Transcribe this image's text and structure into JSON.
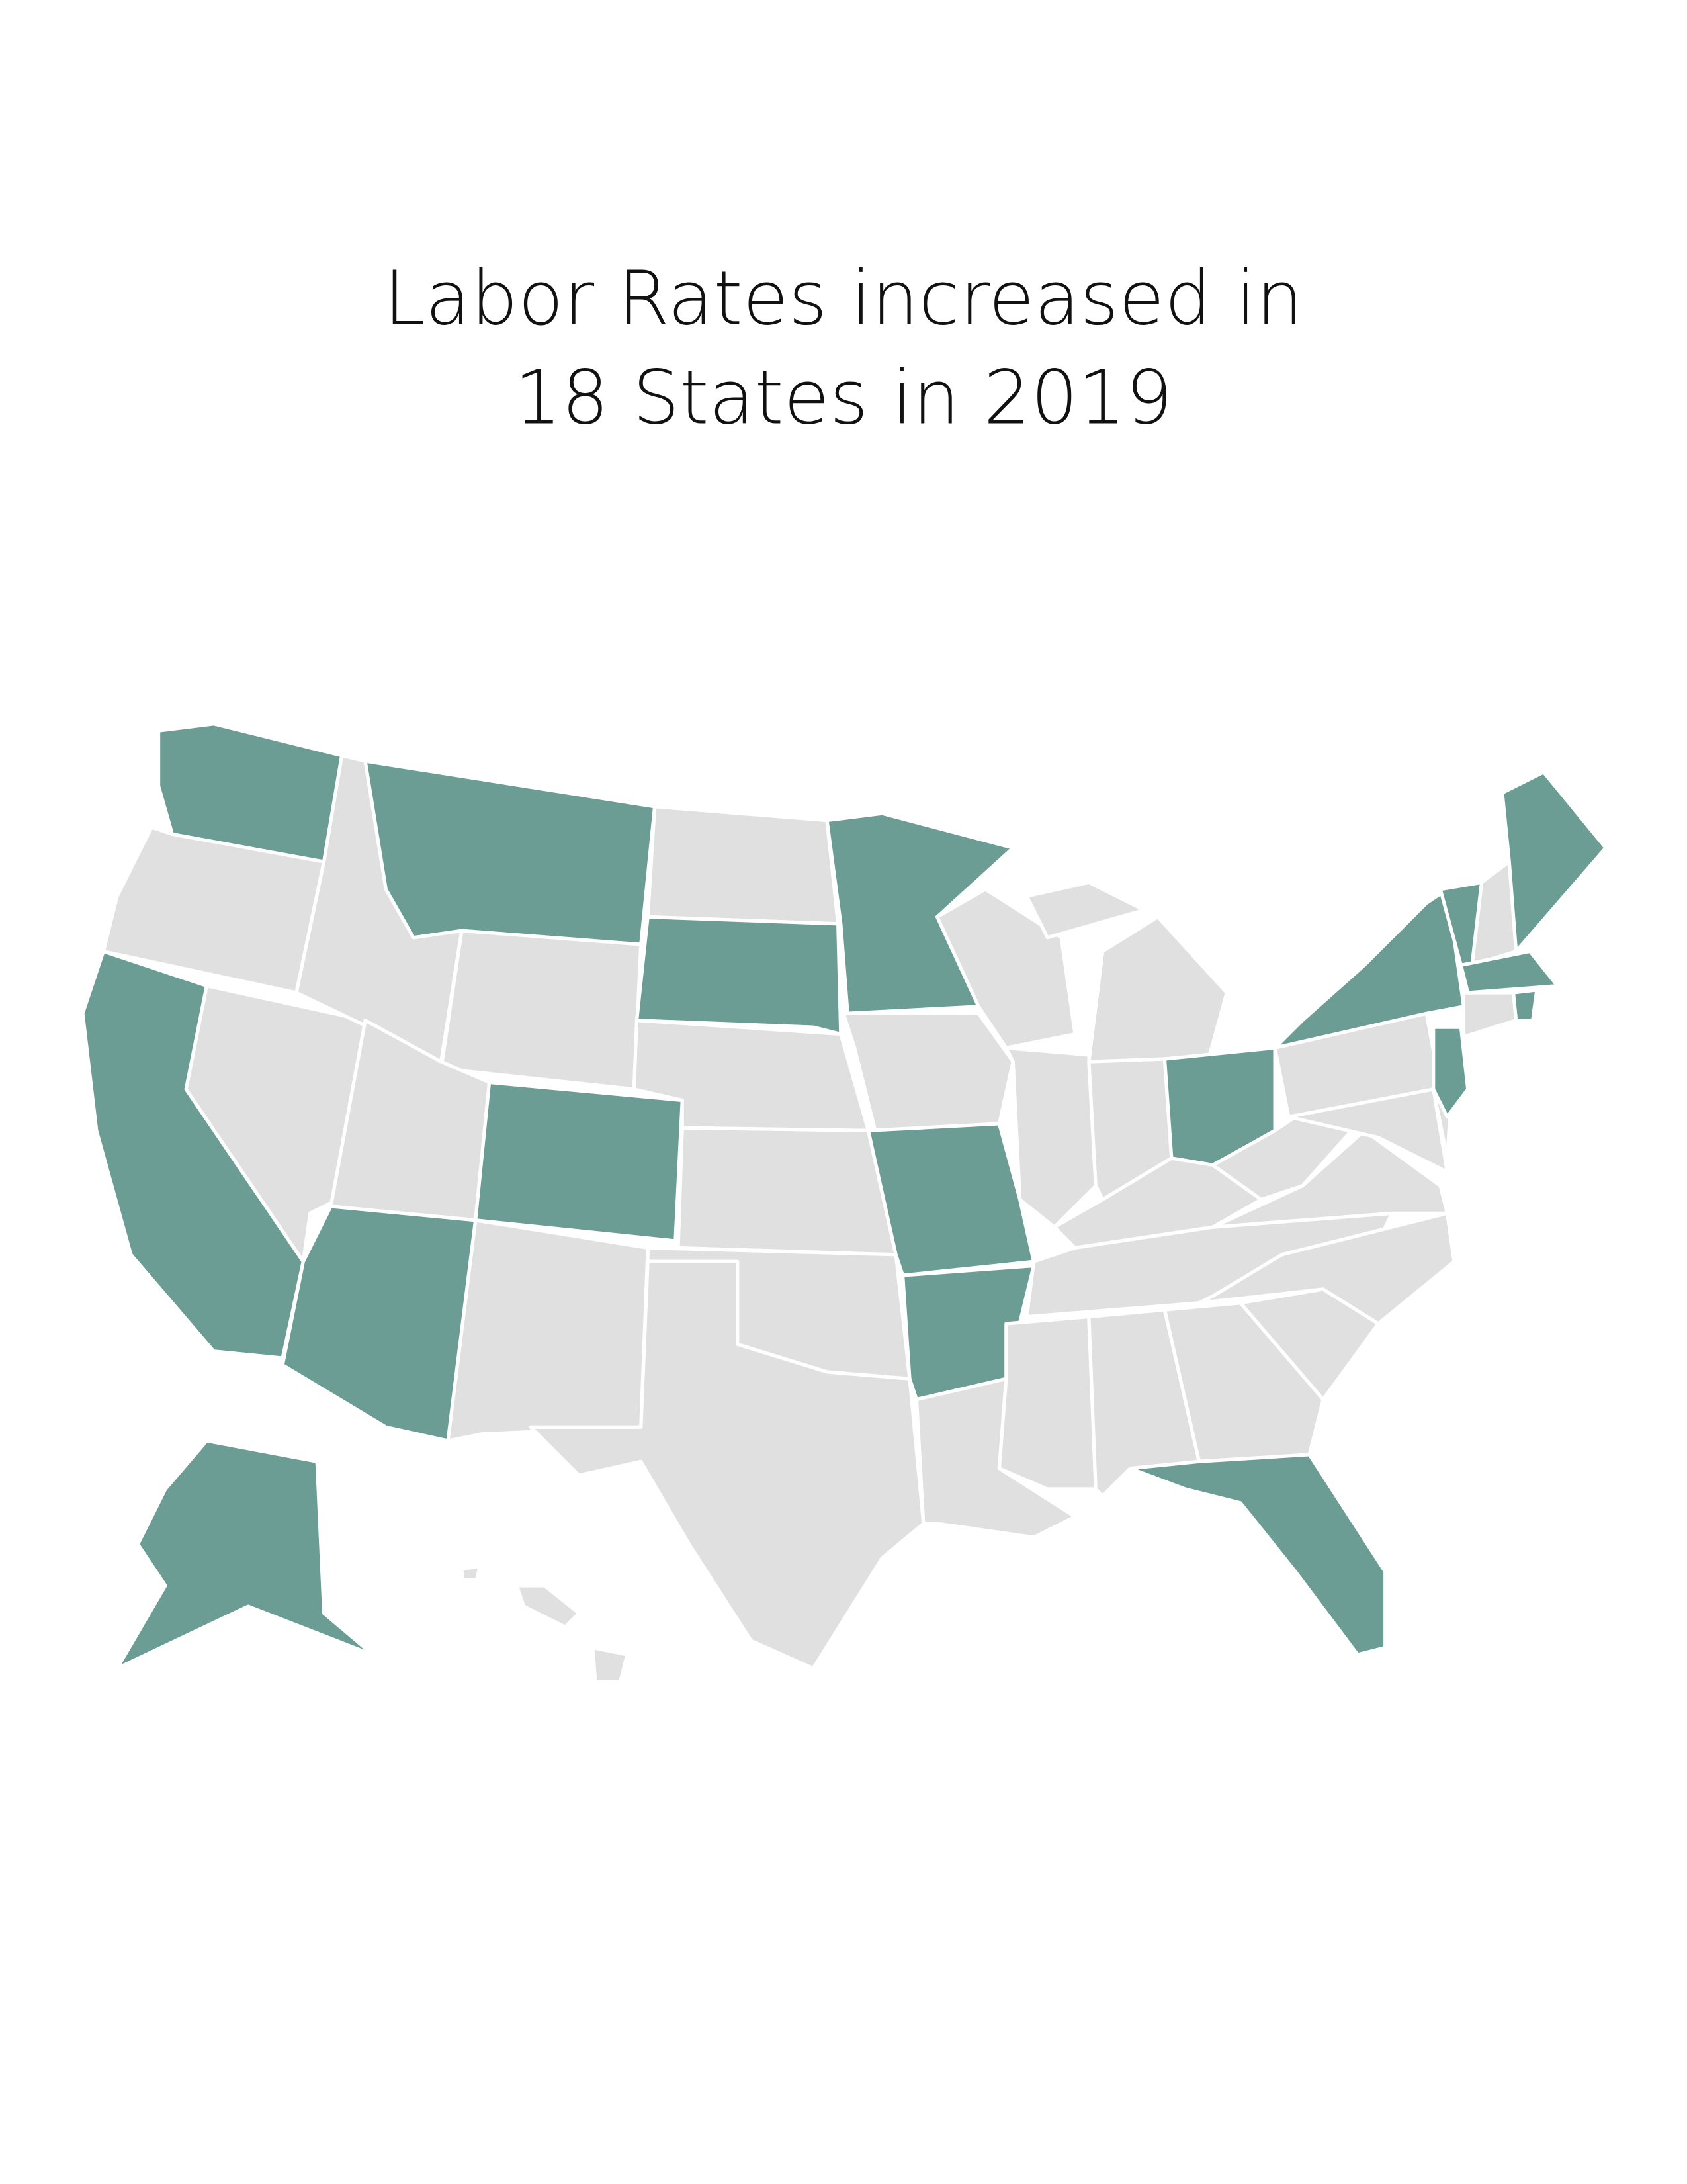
{
  "header": {
    "title_lines": [
      "Labor Rates increased in",
      "18 States in 2019"
    ]
  },
  "map": {
    "highlight_color": "#6b9d95",
    "base_color": "#e0e0e0",
    "border_color": "#ffffff"
  }
}
